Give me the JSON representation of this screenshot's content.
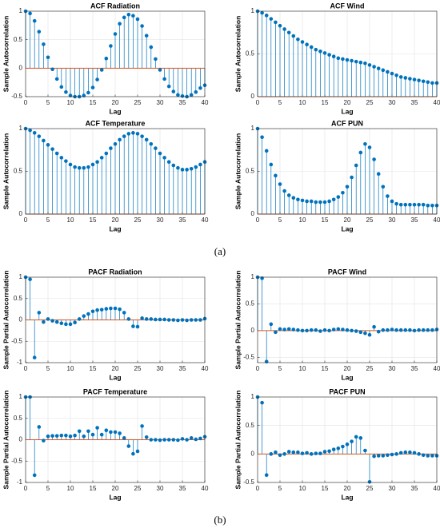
{
  "captions": [
    "(a)",
    "(b)"
  ],
  "chart_data": [
    {
      "type": "stem",
      "title": "ACF Radiation",
      "xlabel": "Lag",
      "ylabel": "Sample Autocorrelation",
      "color": "#0072bd",
      "baseline_color": "#d95319",
      "grid": true,
      "x": [
        0,
        1,
        2,
        3,
        4,
        5,
        6,
        7,
        8,
        9,
        10,
        11,
        12,
        13,
        14,
        15,
        16,
        17,
        18,
        19,
        20,
        21,
        22,
        23,
        24,
        25,
        26,
        27,
        28,
        29,
        30,
        31,
        32,
        33,
        34,
        35,
        36,
        37,
        38,
        39,
        40
      ],
      "values": [
        1,
        0.96,
        0.83,
        0.64,
        0.42,
        0.19,
        -0.02,
        -0.19,
        -0.33,
        -0.42,
        -0.48,
        -0.5,
        -0.5,
        -0.48,
        -0.43,
        -0.34,
        -0.2,
        -0.03,
        0.17,
        0.39,
        0.6,
        0.78,
        0.89,
        0.94,
        0.92,
        0.86,
        0.74,
        0.57,
        0.37,
        0.16,
        -0.03,
        -0.19,
        -0.32,
        -0.41,
        -0.47,
        -0.49,
        -0.5,
        -0.47,
        -0.42,
        -0.35,
        -0.3
      ],
      "xlim": [
        0,
        40
      ],
      "xticks": [
        0,
        5,
        10,
        15,
        20,
        25,
        30,
        35,
        40
      ],
      "ylim": [
        -0.5,
        1
      ],
      "yticks": [
        -0.5,
        0,
        0.5,
        1
      ]
    },
    {
      "type": "stem",
      "title": "ACF Wind",
      "xlabel": "Lag",
      "ylabel": "Sample Autocorrelation",
      "color": "#0072bd",
      "baseline_color": "#d95319",
      "grid": true,
      "x": [
        0,
        1,
        2,
        3,
        4,
        5,
        6,
        7,
        8,
        9,
        10,
        11,
        12,
        13,
        14,
        15,
        16,
        17,
        18,
        19,
        20,
        21,
        22,
        23,
        24,
        25,
        26,
        27,
        28,
        29,
        30,
        31,
        32,
        33,
        34,
        35,
        36,
        37,
        38,
        39,
        40
      ],
      "values": [
        1,
        0.98,
        0.95,
        0.91,
        0.87,
        0.83,
        0.79,
        0.75,
        0.71,
        0.67,
        0.64,
        0.61,
        0.58,
        0.55,
        0.53,
        0.51,
        0.49,
        0.47,
        0.45,
        0.44,
        0.43,
        0.42,
        0.41,
        0.4,
        0.39,
        0.37,
        0.35,
        0.33,
        0.31,
        0.29,
        0.27,
        0.25,
        0.23,
        0.22,
        0.21,
        0.2,
        0.19,
        0.18,
        0.17,
        0.16,
        0.16
      ],
      "xlim": [
        0,
        40
      ],
      "xticks": [
        0,
        5,
        10,
        15,
        20,
        25,
        30,
        35,
        40
      ],
      "ylim": [
        0,
        1
      ],
      "yticks": [
        0,
        0.5,
        1
      ]
    },
    {
      "type": "stem",
      "title": "ACF Temperature",
      "xlabel": "Lag",
      "ylabel": "Sample Autocorrelation",
      "color": "#0072bd",
      "baseline_color": "#d95319",
      "grid": true,
      "x": [
        0,
        1,
        2,
        3,
        4,
        5,
        6,
        7,
        8,
        9,
        10,
        11,
        12,
        13,
        14,
        15,
        16,
        17,
        18,
        19,
        20,
        21,
        22,
        23,
        24,
        25,
        26,
        27,
        28,
        29,
        30,
        31,
        32,
        33,
        34,
        35,
        36,
        37,
        38,
        39,
        40
      ],
      "values": [
        1,
        0.98,
        0.95,
        0.91,
        0.86,
        0.81,
        0.76,
        0.71,
        0.66,
        0.62,
        0.58,
        0.55,
        0.54,
        0.54,
        0.55,
        0.58,
        0.61,
        0.66,
        0.71,
        0.77,
        0.82,
        0.87,
        0.91,
        0.94,
        0.95,
        0.94,
        0.91,
        0.87,
        0.82,
        0.77,
        0.71,
        0.66,
        0.61,
        0.57,
        0.54,
        0.52,
        0.52,
        0.53,
        0.55,
        0.58,
        0.61
      ],
      "xlim": [
        0,
        40
      ],
      "xticks": [
        0,
        5,
        10,
        15,
        20,
        25,
        30,
        35,
        40
      ],
      "ylim": [
        0,
        1
      ],
      "yticks": [
        0,
        0.5,
        1
      ]
    },
    {
      "type": "stem",
      "title": "ACF PUN",
      "xlabel": "Lag",
      "ylabel": "Sample Autocorrelation",
      "color": "#0072bd",
      "baseline_color": "#d95319",
      "grid": true,
      "x": [
        0,
        1,
        2,
        3,
        4,
        5,
        6,
        7,
        8,
        9,
        10,
        11,
        12,
        13,
        14,
        15,
        16,
        17,
        18,
        19,
        20,
        21,
        22,
        23,
        24,
        25,
        26,
        27,
        28,
        29,
        30,
        31,
        32,
        33,
        34,
        35,
        36,
        37,
        38,
        39,
        40
      ],
      "values": [
        1,
        0.9,
        0.74,
        0.58,
        0.45,
        0.35,
        0.27,
        0.22,
        0.19,
        0.17,
        0.16,
        0.15,
        0.15,
        0.14,
        0.14,
        0.14,
        0.15,
        0.17,
        0.2,
        0.25,
        0.32,
        0.43,
        0.57,
        0.72,
        0.82,
        0.78,
        0.64,
        0.47,
        0.32,
        0.21,
        0.15,
        0.12,
        0.11,
        0.11,
        0.11,
        0.11,
        0.11,
        0.11,
        0.1,
        0.1,
        0.1
      ],
      "xlim": [
        0,
        40
      ],
      "xticks": [
        0,
        5,
        10,
        15,
        20,
        25,
        30,
        35,
        40
      ],
      "ylim": [
        0,
        1
      ],
      "yticks": [
        0,
        0.5,
        1
      ]
    },
    {
      "type": "stem",
      "title": "PACF Radiation",
      "xlabel": "Lag",
      "ylabel": "Sample Partial Autocorrelation",
      "color": "#0072bd",
      "baseline_color": "#d95319",
      "grid": true,
      "x": [
        0,
        1,
        2,
        3,
        4,
        5,
        6,
        7,
        8,
        9,
        10,
        11,
        12,
        13,
        14,
        15,
        16,
        17,
        18,
        19,
        20,
        21,
        22,
        23,
        24,
        25,
        26,
        27,
        28,
        29,
        30,
        31,
        32,
        33,
        34,
        35,
        36,
        37,
        38,
        39,
        40
      ],
      "values": [
        1,
        0.95,
        -0.88,
        0.17,
        -0.05,
        0.02,
        -0.02,
        -0.05,
        -0.08,
        -0.1,
        -0.1,
        -0.06,
        0.02,
        0.09,
        0.14,
        0.2,
        0.23,
        0.24,
        0.26,
        0.27,
        0.27,
        0.25,
        0.17,
        0.02,
        -0.15,
        -0.16,
        0.04,
        0.02,
        0.02,
        0.01,
        0.01,
        0.01,
        0,
        0,
        -0.01,
        0,
        -0.01,
        0,
        0,
        0,
        0.03
      ],
      "xlim": [
        0,
        40
      ],
      "xticks": [
        0,
        5,
        10,
        15,
        20,
        25,
        30,
        35,
        40
      ],
      "ylim": [
        -1,
        1
      ],
      "yticks": [
        -1,
        -0.5,
        0,
        0.5,
        1
      ]
    },
    {
      "type": "stem",
      "title": "PACF Wind",
      "xlabel": "Lag",
      "ylabel": "Sample Partial Autocorrelation",
      "color": "#0072bd",
      "baseline_color": "#d95319",
      "grid": true,
      "x": [
        0,
        1,
        2,
        3,
        4,
        5,
        6,
        7,
        8,
        9,
        10,
        11,
        12,
        13,
        14,
        15,
        16,
        17,
        18,
        19,
        20,
        21,
        22,
        23,
        24,
        25,
        26,
        27,
        28,
        29,
        30,
        31,
        32,
        33,
        34,
        35,
        36,
        37,
        38,
        39,
        40
      ],
      "values": [
        1,
        0.98,
        -0.58,
        0.12,
        -0.03,
        0.03,
        0.02,
        0.03,
        0.02,
        0.01,
        0,
        0,
        0.01,
        0.01,
        -0.01,
        0.01,
        0,
        0.02,
        0.03,
        0.02,
        0.01,
        0,
        -0.01,
        -0.03,
        -0.05,
        -0.08,
        0.07,
        -0.02,
        0.01,
        0.01,
        0.02,
        0.01,
        0.01,
        0.01,
        0.01,
        0,
        0.01,
        0.01,
        0.01,
        0.01,
        0.02
      ],
      "xlim": [
        0,
        40
      ],
      "xticks": [
        0,
        5,
        10,
        15,
        20,
        25,
        30,
        35,
        40
      ],
      "ylim": [
        -0.6,
        1
      ],
      "yticks": [
        -0.5,
        0,
        0.5,
        1
      ]
    },
    {
      "type": "stem",
      "title": "PACF Temperature",
      "xlabel": "Lag",
      "ylabel": "Sample Partial Autocorrelation",
      "color": "#0072bd",
      "baseline_color": "#d95319",
      "grid": true,
      "x": [
        0,
        1,
        2,
        3,
        4,
        5,
        6,
        7,
        8,
        9,
        10,
        11,
        12,
        13,
        14,
        15,
        16,
        17,
        18,
        19,
        20,
        21,
        22,
        23,
        24,
        25,
        26,
        27,
        28,
        29,
        30,
        31,
        32,
        33,
        34,
        35,
        36,
        37,
        38,
        39,
        40
      ],
      "values": [
        1,
        1,
        -0.83,
        0.3,
        -0.02,
        0.08,
        0.09,
        0.09,
        0.1,
        0.1,
        0.08,
        0.1,
        0.2,
        0.08,
        0.2,
        0.12,
        0.28,
        0.12,
        0.22,
        0.18,
        0.18,
        0.15,
        0.04,
        -0.15,
        -0.33,
        -0.27,
        0.32,
        0.06,
        0,
        0,
        -0.01,
        0,
        0,
        0,
        -0.01,
        0.02,
        0,
        0.04,
        0.01,
        0.03,
        0.07
      ],
      "xlim": [
        0,
        40
      ],
      "xticks": [
        0,
        5,
        10,
        15,
        20,
        25,
        30,
        35,
        40
      ],
      "ylim": [
        -1,
        1
      ],
      "yticks": [
        -1,
        -0.5,
        0,
        0.5,
        1
      ]
    },
    {
      "type": "stem",
      "title": "PACF PUN",
      "xlabel": "Lag",
      "ylabel": "Sample Partial Autocorrelation",
      "color": "#0072bd",
      "baseline_color": "#d95319",
      "grid": true,
      "x": [
        0,
        1,
        2,
        3,
        4,
        5,
        6,
        7,
        8,
        9,
        10,
        11,
        12,
        13,
        14,
        15,
        16,
        17,
        18,
        19,
        20,
        21,
        22,
        23,
        24,
        25,
        26,
        27,
        28,
        29,
        30,
        31,
        32,
        33,
        34,
        35,
        36,
        37,
        38,
        39,
        40
      ],
      "values": [
        1,
        0.9,
        -0.37,
        0,
        0.03,
        -0.02,
        0,
        0.04,
        0.03,
        0.03,
        0.01,
        0.02,
        0,
        0.01,
        0.01,
        0.04,
        0.05,
        0.08,
        0.1,
        0.13,
        0.17,
        0.22,
        0.3,
        0.28,
        0.06,
        -0.49,
        -0.04,
        -0.03,
        -0.03,
        -0.02,
        -0.01,
        0,
        0.02,
        0.03,
        0.03,
        0.02,
        0,
        -0.02,
        -0.03,
        -0.03,
        -0.03
      ],
      "xlim": [
        0,
        40
      ],
      "xticks": [
        0,
        5,
        10,
        15,
        20,
        25,
        30,
        35,
        40
      ],
      "ylim": [
        -0.5,
        1
      ],
      "yticks": [
        -0.5,
        0,
        0.5,
        1
      ]
    }
  ]
}
